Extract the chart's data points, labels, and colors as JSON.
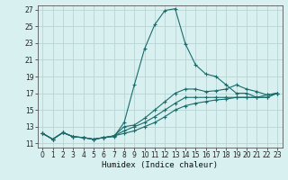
{
  "xlabel": "Humidex (Indice chaleur)",
  "ylabel": "",
  "bg_color": "#d8f0f0",
  "grid_color": "#b8d4d4",
  "line_color": "#1a6b6b",
  "xlim": [
    -0.5,
    23.5
  ],
  "ylim": [
    10.5,
    27.5
  ],
  "xticks": [
    0,
    1,
    2,
    3,
    4,
    5,
    6,
    7,
    8,
    9,
    10,
    11,
    12,
    13,
    14,
    15,
    16,
    17,
    18,
    19,
    20,
    21,
    22,
    23
  ],
  "yticks": [
    11,
    13,
    15,
    17,
    19,
    21,
    23,
    25,
    27
  ],
  "lines": [
    {
      "x": [
        0,
        1,
        2,
        3,
        4,
        5,
        6,
        7,
        8,
        9,
        10,
        11,
        12,
        13,
        14,
        15,
        16,
        17,
        18,
        19,
        20,
        21,
        22,
        23
      ],
      "y": [
        12.2,
        11.5,
        12.3,
        11.8,
        11.7,
        11.5,
        11.7,
        11.8,
        13.5,
        18.0,
        22.3,
        25.2,
        26.9,
        27.1,
        22.9,
        20.4,
        19.3,
        19.0,
        18.0,
        17.0,
        17.0,
        16.5,
        16.8,
        17.0
      ]
    },
    {
      "x": [
        0,
        1,
        2,
        3,
        4,
        5,
        6,
        7,
        8,
        9,
        10,
        11,
        12,
        13,
        14,
        15,
        16,
        17,
        18,
        19,
        20,
        21,
        22,
        23
      ],
      "y": [
        12.2,
        11.5,
        12.3,
        11.8,
        11.7,
        11.5,
        11.7,
        11.9,
        13.0,
        13.2,
        14.0,
        15.0,
        16.0,
        17.0,
        17.5,
        17.5,
        17.2,
        17.3,
        17.5,
        18.0,
        17.5,
        17.2,
        16.8,
        17.0
      ]
    },
    {
      "x": [
        0,
        1,
        2,
        3,
        4,
        5,
        6,
        7,
        8,
        9,
        10,
        11,
        12,
        13,
        14,
        15,
        16,
        17,
        18,
        19,
        20,
        21,
        22,
        23
      ],
      "y": [
        12.2,
        11.5,
        12.3,
        11.8,
        11.7,
        11.5,
        11.7,
        11.9,
        12.5,
        13.0,
        13.5,
        14.2,
        15.0,
        15.8,
        16.5,
        16.5,
        16.5,
        16.5,
        16.5,
        16.5,
        16.5,
        16.5,
        16.5,
        17.0
      ]
    },
    {
      "x": [
        0,
        1,
        2,
        3,
        4,
        5,
        6,
        7,
        8,
        9,
        10,
        11,
        12,
        13,
        14,
        15,
        16,
        17,
        18,
        19,
        20,
        21,
        22,
        23
      ],
      "y": [
        12.2,
        11.5,
        12.3,
        11.8,
        11.7,
        11.5,
        11.7,
        11.9,
        12.2,
        12.5,
        13.0,
        13.5,
        14.2,
        15.0,
        15.5,
        15.8,
        16.0,
        16.2,
        16.3,
        16.5,
        16.5,
        16.5,
        16.5,
        17.0
      ]
    }
  ]
}
